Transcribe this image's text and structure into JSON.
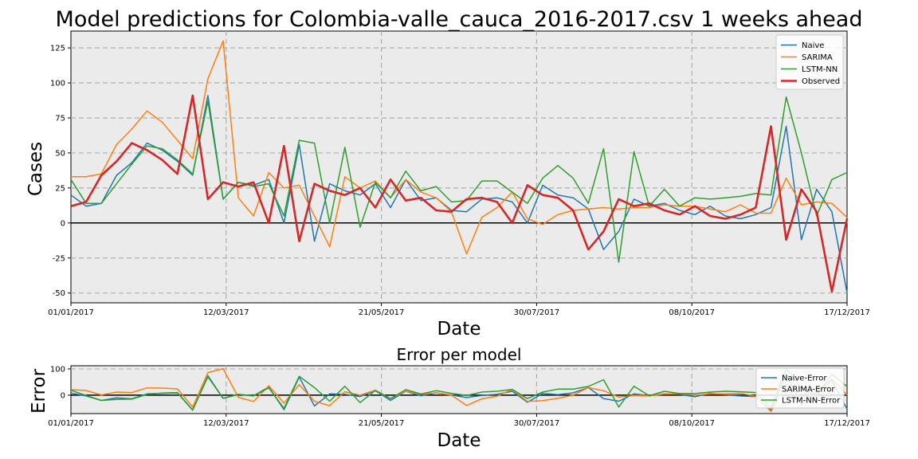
{
  "chart_data": [
    {
      "type": "line",
      "title": "Model predictions for Colombia-valle_cauca_2016-2017.csv 1 weeks ahead",
      "xlabel": "Date",
      "ylabel": "Cases",
      "x_tick_labels": [
        "01/01/2017",
        "12/03/2017",
        "21/05/2017",
        "30/07/2017",
        "08/10/2017",
        "17/12/2017"
      ],
      "y_ticks": [
        -50,
        -25,
        0,
        25,
        50,
        75,
        100,
        125
      ],
      "xlim": [
        0,
        51
      ],
      "ylim": [
        -57,
        137
      ],
      "grid": true,
      "legend_position": "top-right",
      "series": [
        {
          "name": "Naive",
          "color": "#1f77b4",
          "values": [
            20,
            12,
            14,
            34,
            43,
            57,
            52,
            44,
            34,
            91,
            17,
            29,
            27,
            31,
            0,
            56,
            -13,
            28,
            23,
            20,
            28,
            11,
            31,
            16,
            18,
            9,
            8,
            17,
            18,
            15,
            0,
            27,
            20,
            18,
            10,
            -19,
            -6,
            17,
            12,
            14,
            9,
            6,
            12,
            5,
            3,
            6,
            11,
            69,
            -12,
            24,
            8,
            -50
          ]
        },
        {
          "name": "SARIMA",
          "color": "#ff7f0e",
          "values": [
            33,
            33,
            35,
            56,
            67,
            80,
            72,
            59,
            46,
            103,
            130,
            18,
            5,
            36,
            25,
            27,
            5,
            -17,
            33,
            25,
            30,
            18,
            31,
            22,
            18,
            8,
            -22,
            4,
            11,
            22,
            3,
            -1,
            6,
            9,
            10,
            11,
            10,
            11,
            11,
            13,
            12,
            12,
            10,
            8,
            13,
            7,
            7,
            32,
            13,
            15,
            14,
            4
          ]
        },
        {
          "name": "LSTM-NN",
          "color": "#2ca02c",
          "values": [
            31,
            14,
            14,
            28,
            42,
            55,
            53,
            45,
            35,
            87,
            17,
            29,
            26,
            28,
            5,
            59,
            57,
            0,
            54,
            -3,
            29,
            18,
            37,
            23,
            26,
            15,
            16,
            30,
            30,
            22,
            14,
            32,
            41,
            32,
            14,
            53,
            -28,
            51,
            12,
            24,
            12,
            18,
            17,
            18,
            19,
            21,
            20,
            90,
            50,
            5,
            31,
            36
          ]
        },
        {
          "name": "Observed",
          "color": "#d62728",
          "values": [
            12,
            15,
            34,
            44,
            57,
            52,
            45,
            35,
            91,
            17,
            29,
            26,
            29,
            0,
            55,
            -13,
            28,
            23,
            20,
            25,
            11,
            31,
            16,
            18,
            9,
            8,
            17,
            18,
            15,
            0,
            27,
            20,
            18,
            9,
            -19,
            -6,
            17,
            12,
            14,
            9,
            6,
            12,
            5,
            3,
            6,
            11,
            69,
            -12,
            24,
            8,
            -49,
            3
          ]
        }
      ]
    },
    {
      "type": "line",
      "title": "Error per model",
      "xlabel": "Date",
      "ylabel": "Error",
      "x_tick_labels": [
        "01/01/2017",
        "12/03/2017",
        "21/05/2017",
        "30/07/2017",
        "08/10/2017",
        "17/12/2017"
      ],
      "y_ticks": [
        0,
        100
      ],
      "xlim": [
        0,
        51
      ],
      "ylim": [
        -70,
        112
      ],
      "grid": true,
      "legend_position": "top-right",
      "series": [
        {
          "name": "Naive-Error",
          "color": "#1f77b4",
          "values": [
            8,
            -3,
            -20,
            -10,
            -14,
            5,
            7,
            9,
            -57,
            74,
            -12,
            3,
            -2,
            31,
            -55,
            69,
            -41,
            5,
            3,
            -5,
            17,
            -20,
            15,
            -2,
            9,
            1,
            -9,
            -1,
            3,
            15,
            -27,
            7,
            2,
            9,
            29,
            -13,
            -23,
            5,
            -2,
            5,
            3,
            -6,
            7,
            2,
            -3,
            -5,
            -58,
            81,
            -36,
            16,
            57,
            -53
          ]
        },
        {
          "name": "SARIMA-Error",
          "color": "#ff7f0e",
          "values": [
            21,
            18,
            1,
            12,
            10,
            28,
            27,
            24,
            -45,
            86,
            101,
            -8,
            -24,
            36,
            -30,
            40,
            -23,
            -40,
            13,
            0,
            19,
            -13,
            15,
            4,
            9,
            0,
            -39,
            -14,
            -4,
            22,
            -24,
            -21,
            -12,
            0,
            29,
            17,
            -7,
            -1,
            -3,
            4,
            6,
            0,
            5,
            5,
            7,
            -4,
            -62,
            44,
            -11,
            7,
            63,
            1
          ]
        },
        {
          "name": "LSTM-NN-Error",
          "color": "#2ca02c",
          "values": [
            19,
            -1,
            -20,
            -16,
            -15,
            3,
            8,
            10,
            -56,
            70,
            -12,
            3,
            -3,
            28,
            -50,
            72,
            29,
            -23,
            34,
            -28,
            18,
            -13,
            21,
            5,
            17,
            7,
            -1,
            12,
            15,
            22,
            -13,
            12,
            23,
            23,
            33,
            59,
            -45,
            34,
            -2,
            15,
            6,
            6,
            12,
            15,
            13,
            10,
            -49,
            102,
            26,
            -3,
            80,
            33
          ]
        }
      ]
    }
  ]
}
